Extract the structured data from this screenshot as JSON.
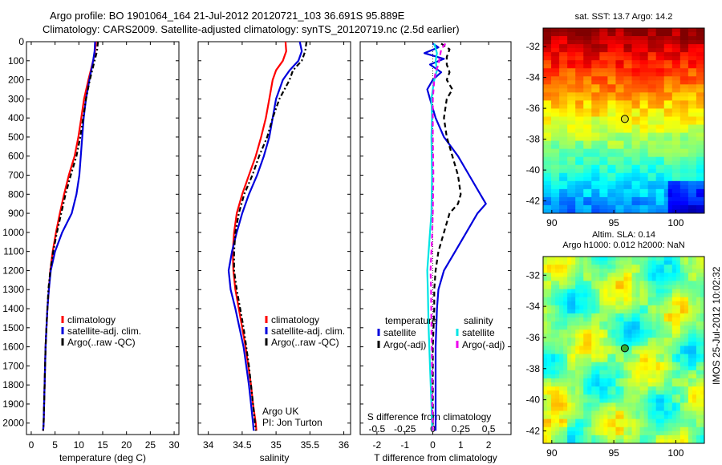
{
  "title": {
    "line1": "Argo profile: BO 1901064_164 21-Jul-2012 20120721_103 36.691S 95.889E",
    "line2": "Climatology: CARS2009. Satellite-adjusted climatology: synTS_20120719.nc (2.5d earlier)"
  },
  "colors": {
    "climatology": "#ff0000",
    "satellite": "#0000dd",
    "argo": "#000000",
    "sat_cyan": "#00e5e5",
    "argo_magenta": "#ee00ee"
  },
  "depth_axis": {
    "ylim": [
      0,
      2060
    ],
    "ticks": [
      0,
      100,
      200,
      300,
      400,
      500,
      600,
      700,
      800,
      900,
      1000,
      1100,
      1200,
      1300,
      1400,
      1500,
      1600,
      1700,
      1800,
      1900,
      2000
    ],
    "tick_labels": [
      "0",
      "100",
      "200",
      "300",
      "400",
      "500",
      "600",
      "700",
      "800",
      "900",
      "1000",
      "1100",
      "1200",
      "1300",
      "1400",
      "1500",
      "1600",
      "1700",
      "1800",
      "1900",
      "2000"
    ]
  },
  "chart_data": [
    {
      "type": "line",
      "name": "temperature_panel",
      "xlabel": "temperature (deg C)",
      "xlim": [
        -1,
        31
      ],
      "xticks": [
        0,
        5,
        10,
        15,
        20,
        25,
        30
      ],
      "xtick_labels": [
        "0",
        "5",
        "10",
        "15",
        "20",
        "25",
        "30"
      ],
      "ylim": [
        0,
        2060
      ],
      "legend": {
        "position": "lower-middle",
        "entries": [
          {
            "label": "climatology",
            "color": "#ff0000"
          },
          {
            "label": "satellite-adj. clim.",
            "color": "#0000dd"
          },
          {
            "label": "Argo(..raw -QC)",
            "color": "#000000"
          }
        ]
      },
      "series": [
        {
          "name": "climatology",
          "style": "solid",
          "color": "#ff0000",
          "depth": [
            0,
            50,
            100,
            200,
            300,
            400,
            500,
            600,
            700,
            800,
            900,
            1000,
            1100,
            1200,
            1300,
            1400,
            1500,
            1600,
            1700,
            1800,
            1900,
            2000,
            2040
          ],
          "values": [
            13.6,
            13.4,
            13.0,
            12.0,
            11.1,
            10.5,
            9.9,
            9.1,
            7.9,
            6.9,
            6.0,
            5.2,
            4.5,
            4.0,
            3.7,
            3.4,
            3.2,
            3.0,
            2.9,
            2.8,
            2.7,
            2.6,
            2.5
          ]
        },
        {
          "name": "satellite-adj. clim.",
          "style": "solid",
          "color": "#0000dd",
          "depth": [
            0,
            50,
            100,
            200,
            300,
            400,
            500,
            600,
            700,
            800,
            900,
            1000,
            1100,
            1200,
            1300,
            1400,
            1500,
            1600,
            1700,
            1800,
            1900,
            2000,
            2040
          ],
          "values": [
            13.4,
            13.3,
            13.0,
            12.2,
            11.5,
            11.0,
            10.7,
            10.4,
            10.1,
            9.5,
            8.5,
            6.5,
            5.0,
            4.1,
            3.7,
            3.4,
            3.2,
            3.0,
            2.9,
            2.8,
            2.7,
            2.6,
            2.5
          ]
        },
        {
          "name": "Argo(..raw -QC)",
          "style": "dashdot",
          "color": "#000000",
          "depth": [
            0,
            50,
            100,
            200,
            300,
            400,
            500,
            600,
            700,
            800,
            900,
            1000,
            1100,
            1200,
            1300,
            1400,
            1500,
            1600,
            1700,
            1800,
            1900,
            2000,
            2040
          ],
          "values": [
            14.0,
            13.8,
            13.3,
            12.3,
            11.5,
            10.9,
            10.3,
            9.5,
            8.3,
            7.2,
            6.3,
            5.4,
            4.6,
            4.0,
            3.6,
            3.4,
            3.2,
            3.0,
            2.9,
            2.8,
            2.7,
            2.6,
            2.5
          ]
        }
      ]
    },
    {
      "type": "line",
      "name": "salinity_panel",
      "xlabel": "salinity",
      "xlim": [
        33.85,
        36.1
      ],
      "xticks": [
        34,
        34.5,
        35,
        35.5,
        36
      ],
      "xtick_labels": [
        "34",
        "34.5",
        "35",
        "35.5",
        "36"
      ],
      "ylim": [
        0,
        2060
      ],
      "annotation": [
        "Argo UK",
        "PI: Jon Turton"
      ],
      "legend": {
        "position": "lower-right",
        "entries": [
          {
            "label": "climatology",
            "color": "#ff0000"
          },
          {
            "label": "satellite-adj. clim.",
            "color": "#0000dd"
          },
          {
            "label": "Argo(..raw -QC)",
            "color": "#000000"
          }
        ]
      },
      "series": [
        {
          "name": "climatology",
          "style": "solid",
          "color": "#ff0000",
          "depth": [
            0,
            50,
            100,
            150,
            200,
            300,
            400,
            500,
            600,
            700,
            800,
            900,
            1000,
            1100,
            1200,
            1300,
            1400,
            1500,
            1600,
            1700,
            1800,
            1900,
            2000,
            2040
          ],
          "values": [
            35.14,
            35.15,
            35.1,
            35.0,
            34.95,
            34.9,
            34.85,
            34.78,
            34.7,
            34.6,
            34.5,
            34.42,
            34.38,
            34.36,
            34.37,
            34.4,
            34.45,
            34.5,
            34.55,
            34.59,
            34.63,
            34.66,
            34.7,
            34.71
          ]
        },
        {
          "name": "satellite-adj. clim.",
          "style": "solid",
          "color": "#0000dd",
          "depth": [
            0,
            50,
            100,
            150,
            200,
            300,
            400,
            500,
            600,
            700,
            800,
            900,
            1000,
            1100,
            1200,
            1300,
            1400,
            1500,
            1600,
            1700,
            1800,
            1900,
            2000,
            2040
          ],
          "values": [
            35.35,
            35.38,
            35.33,
            35.2,
            35.1,
            35.0,
            34.95,
            34.9,
            34.82,
            34.72,
            34.6,
            34.5,
            34.42,
            34.35,
            34.3,
            34.33,
            34.4,
            34.46,
            34.52,
            34.56,
            34.6,
            34.63,
            34.66,
            34.67
          ]
        },
        {
          "name": "Argo(..raw -QC)",
          "style": "dashdot",
          "color": "#000000",
          "depth": [
            0,
            50,
            100,
            150,
            200,
            300,
            400,
            500,
            600,
            700,
            800,
            900,
            1000,
            1100,
            1200,
            1300,
            1400,
            1500,
            1600,
            1700,
            1800,
            1900,
            2000,
            2040
          ],
          "values": [
            35.45,
            35.43,
            35.38,
            35.25,
            35.2,
            35.05,
            34.95,
            34.87,
            34.75,
            34.65,
            34.53,
            34.45,
            34.4,
            34.38,
            34.38,
            34.42,
            34.47,
            34.52,
            34.56,
            34.6,
            34.63,
            34.66,
            34.69,
            34.7
          ]
        }
      ]
    },
    {
      "type": "line",
      "name": "difference_panel",
      "xlabel": "T difference from climatology",
      "top_xlabel": "S difference from climatology",
      "xlim": [
        -2.6,
        2.8
      ],
      "xticks": [
        -2,
        -1,
        0,
        1,
        2
      ],
      "xtick_labels": [
        "-2",
        "-1",
        "0",
        "1",
        "2"
      ],
      "top_xticks": [
        -0.5,
        -0.25,
        0,
        0.25,
        0.5
      ],
      "top_xtick_labels": [
        "-0.5",
        "-0.25",
        "0",
        "0.25",
        "0.5"
      ],
      "ylim": [
        0,
        2060
      ],
      "legend": {
        "position": "lower",
        "groups": [
          {
            "title": "temperature",
            "entries": [
              {
                "label": "satellite",
                "color": "#0000dd"
              },
              {
                "label": "Argo(-adj)",
                "color": "#000000"
              }
            ]
          },
          {
            "title": "salinity",
            "entries": [
              {
                "label": "satellite",
                "color": "#00e5e5"
              },
              {
                "label": "Argo(-adj)",
                "color": "#ee00ee"
              }
            ]
          }
        ]
      },
      "series": [
        {
          "name": "temperature satellite",
          "style": "solid",
          "color": "#0000dd",
          "depth": [
            10,
            30,
            60,
            90,
            120,
            160,
            200,
            250,
            300,
            400,
            500,
            600,
            700,
            800,
            850,
            900,
            1000,
            1100,
            1200,
            1300,
            1400,
            1600,
            1800,
            2000,
            2040
          ],
          "values": [
            0.0,
            0.2,
            -0.3,
            0.4,
            -0.1,
            0.3,
            0.0,
            -0.2,
            -0.1,
            0.1,
            0.4,
            0.9,
            1.3,
            1.7,
            1.9,
            1.6,
            1.2,
            0.8,
            0.4,
            0.2,
            0.15,
            0.1,
            0.1,
            0.1,
            0.1
          ]
        },
        {
          "name": "temperature Argo(-adj)",
          "style": "dashed",
          "color": "#000000",
          "depth": [
            10,
            40,
            80,
            120,
            160,
            200,
            250,
            300,
            400,
            500,
            600,
            700,
            800,
            850,
            900,
            1000,
            1100,
            1200,
            1300,
            1400,
            1600,
            1800,
            2000,
            2040
          ],
          "values": [
            0.3,
            0.6,
            0.5,
            0.5,
            0.6,
            0.5,
            0.7,
            0.5,
            0.4,
            0.5,
            0.7,
            0.9,
            1.0,
            0.9,
            0.6,
            0.4,
            0.2,
            0.1,
            0.05,
            0.05,
            0.0,
            0.0,
            0.0,
            0.0
          ]
        },
        {
          "name": "salinity satellite",
          "style": "solid",
          "color": "#00e5e5",
          "depth": [
            10,
            60,
            100,
            150,
            200,
            250,
            300,
            400,
            500,
            700,
            900,
            1000,
            1100,
            1200,
            1300,
            1500,
            1700,
            1900,
            2000,
            2040
          ],
          "values": [
            0.05,
            0.15,
            0.1,
            0.15,
            0.05,
            0.0,
            -0.05,
            -0.03,
            -0.05,
            -0.03,
            -0.05,
            -0.1,
            -0.15,
            -0.2,
            -0.18,
            -0.15,
            -0.1,
            -0.05,
            -0.03,
            -0.02
          ]
        },
        {
          "name": "salinity Argo(-adj)",
          "style": "dashed",
          "color": "#ee00ee",
          "depth": [
            10,
            40,
            80,
            120,
            160,
            200,
            300,
            500,
            700,
            900,
            1000,
            1100,
            1200,
            1300,
            1500,
            1700,
            1900,
            2040
          ],
          "values": [
            0.45,
            0.3,
            0.25,
            0.2,
            0.1,
            0.05,
            0.0,
            0.0,
            0.02,
            0.0,
            -0.02,
            -0.05,
            -0.08,
            -0.06,
            -0.05,
            -0.03,
            -0.02,
            0.0
          ]
        }
      ]
    },
    {
      "type": "heatmap",
      "name": "sst_map",
      "title": "sat. SST: 13.7 Argo: 14.2",
      "xlim": [
        89.3,
        102.3
      ],
      "ylim": [
        -42.8,
        -30.8
      ],
      "xticks": [
        90,
        95,
        100
      ],
      "xtick_labels": [
        "90",
        "95",
        "100"
      ],
      "yticks": [
        -32,
        -34,
        -36,
        -38,
        -40,
        -42
      ],
      "ytick_labels": [
        "-32",
        "-34",
        "-36",
        "-38",
        "-40",
        "-42"
      ],
      "marker": {
        "lon": 95.889,
        "lat": -36.691,
        "color": "#dddd22"
      },
      "colormap": "jet"
    },
    {
      "type": "heatmap",
      "name": "sla_map",
      "title": [
        "Altim. SLA: 0.14",
        "Argo h1000: 0.012 h2000: NaN"
      ],
      "xlim": [
        89.3,
        102.3
      ],
      "ylim": [
        -42.8,
        -30.8
      ],
      "xticks": [
        90,
        95,
        100
      ],
      "xtick_labels": [
        "90",
        "95",
        "100"
      ],
      "yticks": [
        -32,
        -34,
        -36,
        -38,
        -40,
        -42
      ],
      "ytick_labels": [
        "-32",
        "-34",
        "-36",
        "-38",
        "-40",
        "-42"
      ],
      "marker": {
        "lon": 95.889,
        "lat": -36.691,
        "color": "#33aa33"
      },
      "colormap": "jet"
    }
  ],
  "footer": {
    "side_label": "IMOS 25-Jul-2012 10:02:32"
  }
}
